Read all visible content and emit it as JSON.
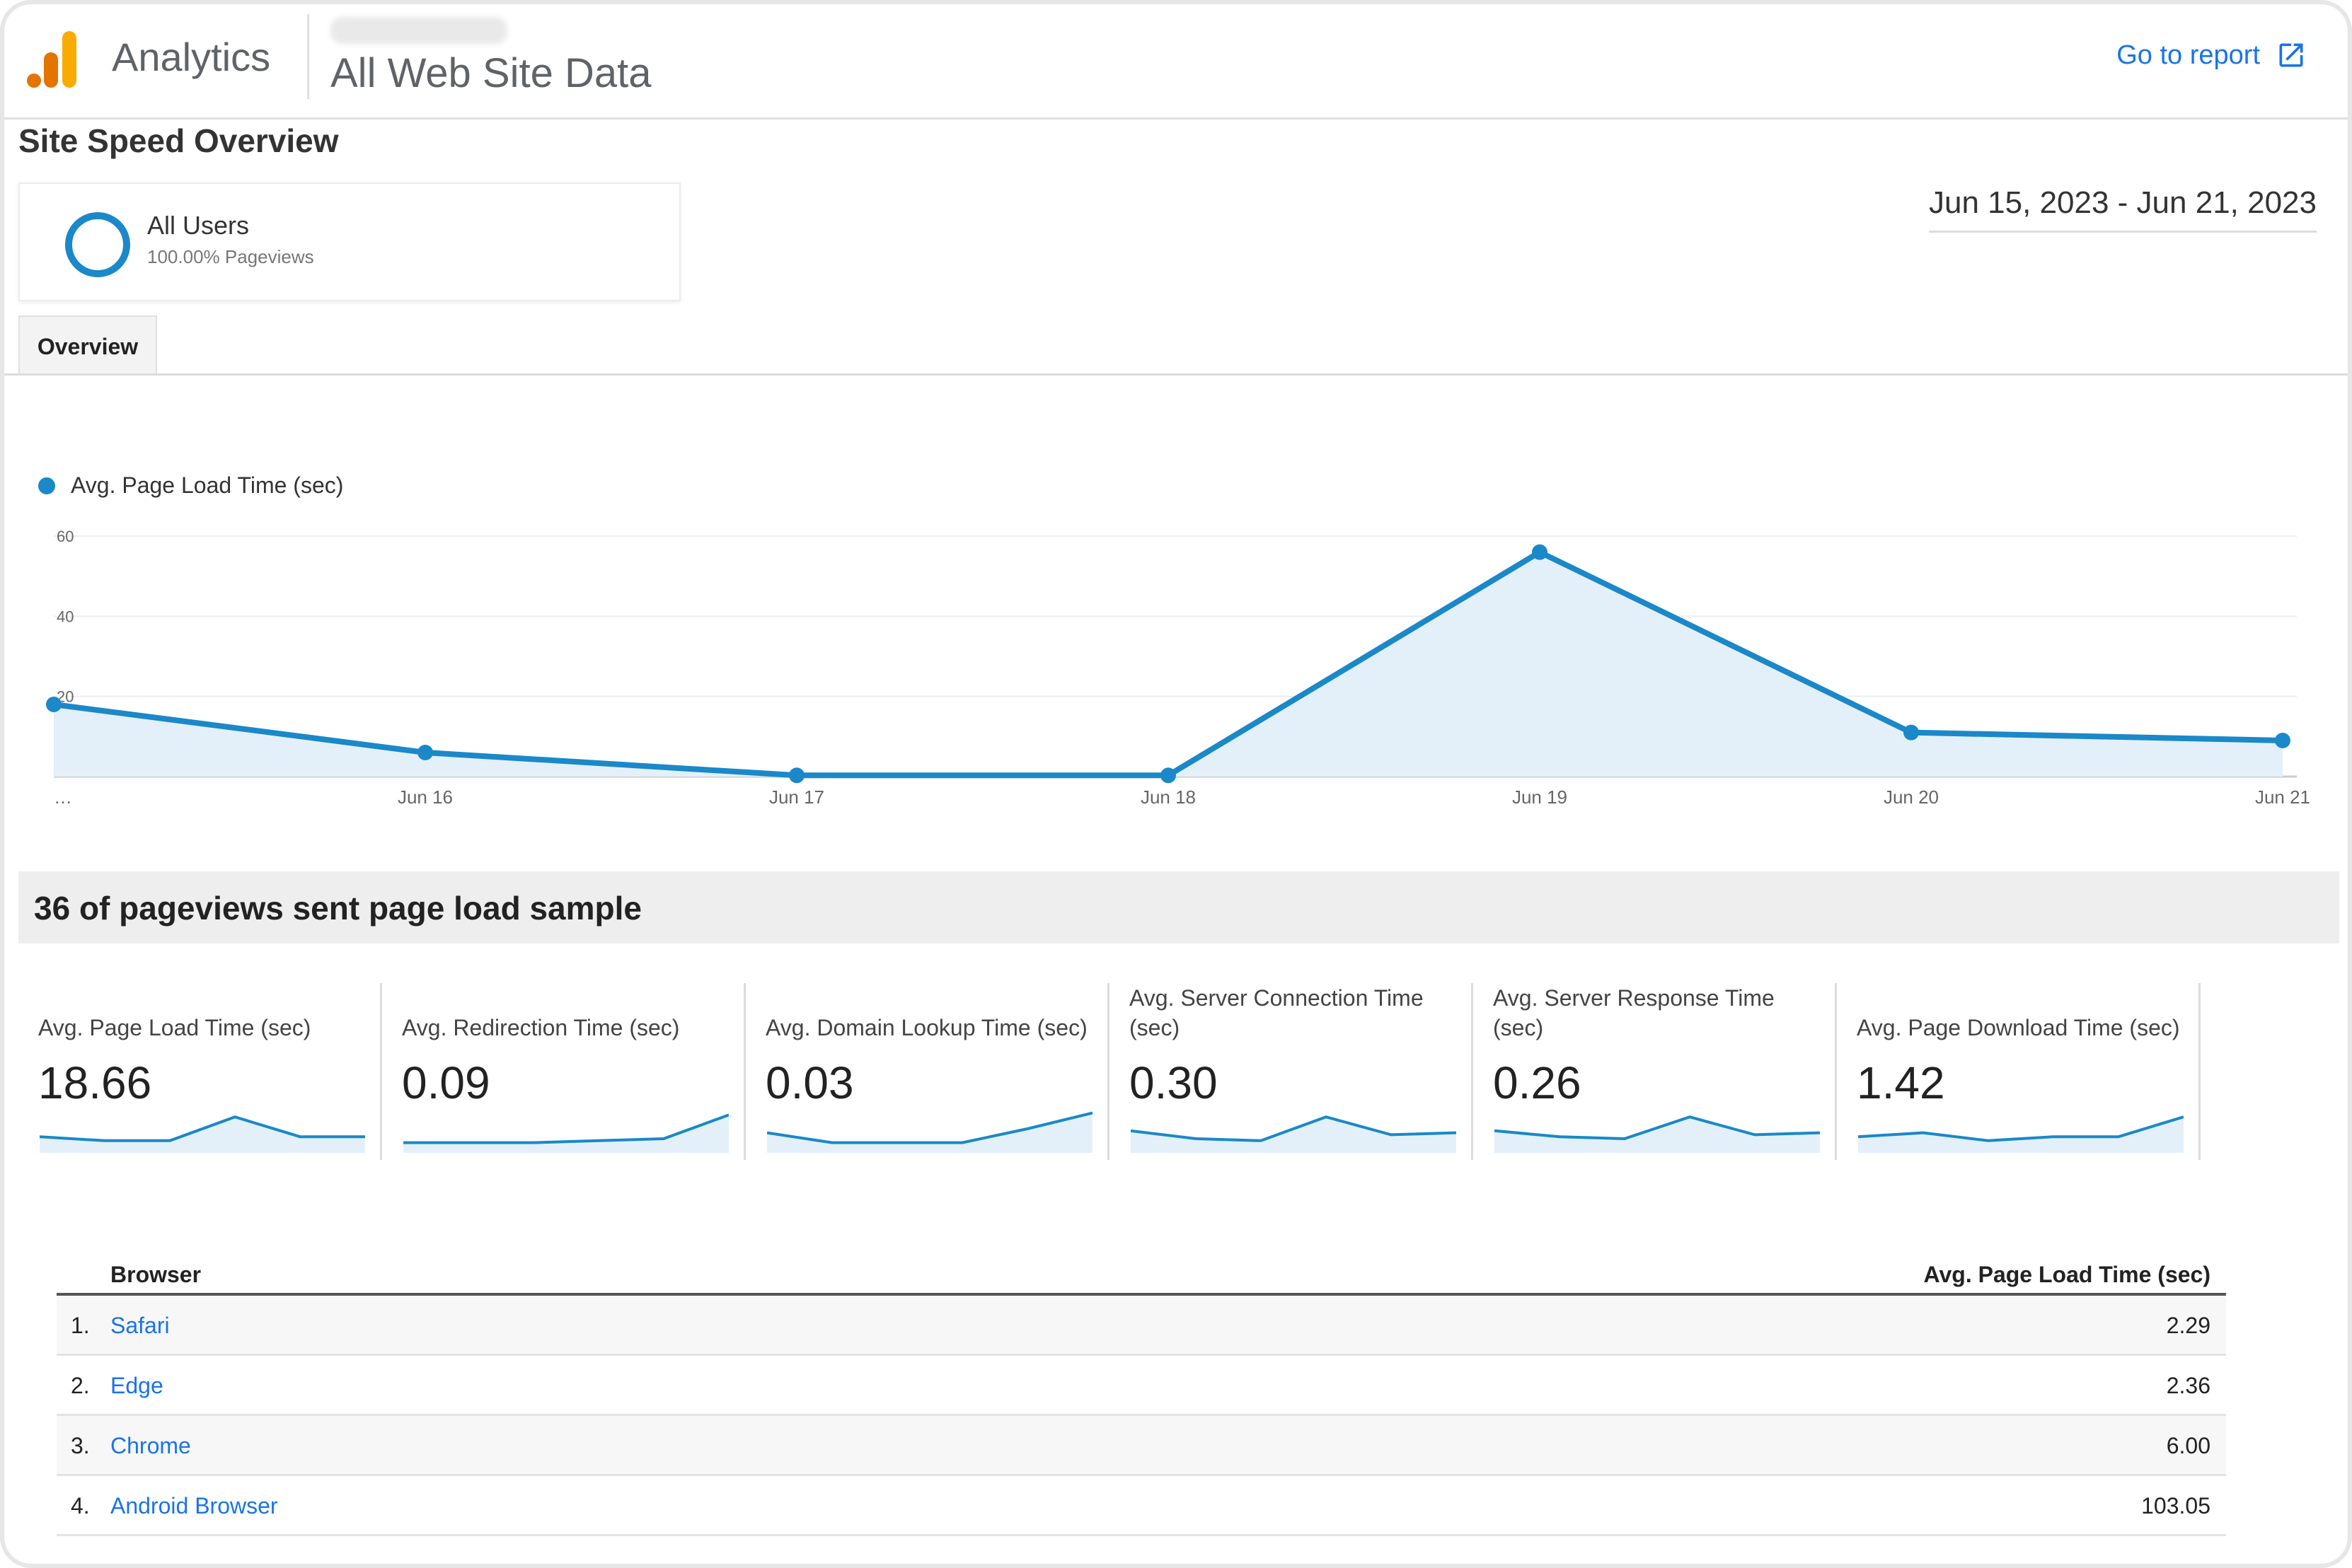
{
  "header": {
    "app_name": "Analytics",
    "property_name": "All Web Site Data",
    "goto_label": "Go to report"
  },
  "page": {
    "title": "Site Speed Overview",
    "segment_label": "All Users",
    "segment_sub": "100.00% Pageviews",
    "date_range": "Jun 15, 2023 - Jun 21, 2023",
    "tab_overview": "Overview"
  },
  "chart_data": {
    "type": "area",
    "series": [
      {
        "name": "Avg. Page Load Time (sec)",
        "values": [
          18,
          6,
          0.3,
          0.3,
          56,
          11,
          9
        ]
      }
    ],
    "x": [
      "…",
      "Jun 16",
      "Jun 17",
      "Jun 18",
      "Jun 19",
      "Jun 20",
      "Jun 21"
    ],
    "yticks": [
      "20",
      "40",
      "60"
    ],
    "ylim": [
      0,
      60
    ],
    "grid": true,
    "legend": "top-left",
    "color": "#1a88c9"
  },
  "summary": {
    "sample_text": "36 of pageviews sent page load sample"
  },
  "metrics": [
    {
      "label": "Avg. Page Load Time (sec)",
      "value": "18.66",
      "spark": [
        0.3,
        0.2,
        0.2,
        0.8,
        0.3,
        0.3
      ]
    },
    {
      "label": "Avg. Redirection Time (sec)",
      "value": "0.09",
      "spark": [
        0.15,
        0.15,
        0.15,
        0.2,
        0.25,
        0.85
      ]
    },
    {
      "label": "Avg. Domain Lookup Time (sec)",
      "value": "0.03",
      "spark": [
        0.4,
        0.15,
        0.15,
        0.15,
        0.5,
        0.9
      ]
    },
    {
      "label": "Avg. Server Connection Time (sec)",
      "value": "0.30",
      "spark": [
        0.45,
        0.25,
        0.2,
        0.8,
        0.35,
        0.4
      ]
    },
    {
      "label": "Avg. Server Response Time (sec)",
      "value": "0.26",
      "spark": [
        0.45,
        0.3,
        0.25,
        0.8,
        0.35,
        0.4
      ]
    },
    {
      "label": "Avg. Page Download Time (sec)",
      "value": "1.42",
      "spark": [
        0.3,
        0.4,
        0.2,
        0.3,
        0.3,
        0.8
      ]
    }
  ],
  "table": {
    "col_browser": "Browser",
    "col_value": "Avg. Page Load Time (sec)",
    "rows": [
      {
        "index": "1.",
        "name": "Safari",
        "value": "2.29"
      },
      {
        "index": "2.",
        "name": "Edge",
        "value": "2.36"
      },
      {
        "index": "3.",
        "name": "Chrome",
        "value": "6.00"
      },
      {
        "index": "4.",
        "name": "Android Browser",
        "value": "103.05"
      }
    ]
  },
  "colors": {
    "accent": "#1a88c9",
    "link": "#1a73e8",
    "logo_orange": "#f9ab00",
    "logo_dark_orange": "#e37400"
  }
}
